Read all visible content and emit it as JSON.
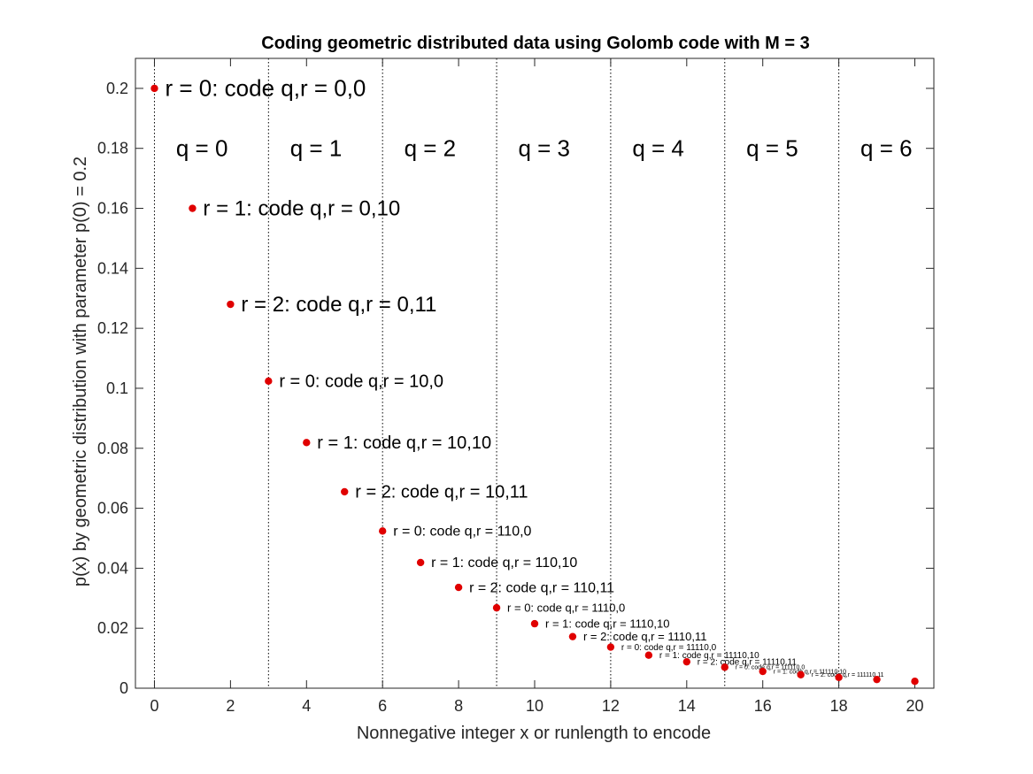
{
  "chart_data": {
    "type": "scatter",
    "title": "Coding geometric distributed data using Golomb code with M = 3",
    "xlabel": "Nonnegative integer x or runlength to encode",
    "ylabel": "p(x) by geometric distribution with parameter p(0) = 0.2",
    "xlim": [
      -0.5,
      20.5
    ],
    "ylim": [
      0,
      0.21
    ],
    "xticks": [
      0,
      2,
      4,
      6,
      8,
      10,
      12,
      14,
      16,
      18,
      20
    ],
    "yticks": [
      0,
      0.02,
      0.04,
      0.06,
      0.08,
      0.1,
      0.12,
      0.14,
      0.16,
      0.18,
      0.2
    ],
    "xtick_labels": [
      "0",
      "2",
      "4",
      "6",
      "8",
      "10",
      "12",
      "14",
      "16",
      "18",
      "20"
    ],
    "ytick_labels": [
      "0",
      "0.02",
      "0.04",
      "0.06",
      "0.08",
      "0.1",
      "0.12",
      "0.14",
      "0.16",
      "0.18",
      "0.2"
    ],
    "marker_color": "#e00000",
    "group_boundaries": [
      0,
      3,
      6,
      9,
      12,
      15,
      18
    ],
    "group_label_y": 0.18,
    "group_labels": [
      {
        "x": 1.25,
        "text": "q = 0"
      },
      {
        "x": 4.25,
        "text": "q = 1"
      },
      {
        "x": 7.25,
        "text": "q = 2"
      },
      {
        "x": 10.25,
        "text": "q = 3"
      },
      {
        "x": 13.25,
        "text": "q = 4"
      },
      {
        "x": 16.25,
        "text": "q = 5"
      },
      {
        "x": 19.25,
        "text": "q = 6"
      }
    ],
    "points": [
      {
        "x": 0,
        "y": 0.2,
        "label": "r = 0:  code q,r = 0,0",
        "font": 26
      },
      {
        "x": 1,
        "y": 0.16,
        "label": "r = 1:  code q,r = 0,10",
        "font": 24
      },
      {
        "x": 2,
        "y": 0.128,
        "label": "r = 2:  code q,r = 0,11",
        "font": 24
      },
      {
        "x": 3,
        "y": 0.1024,
        "label": "r = 0:  code q,r = 10,0",
        "font": 20
      },
      {
        "x": 4,
        "y": 0.0819,
        "label": "r = 1:  code q,r = 10,10",
        "font": 20
      },
      {
        "x": 5,
        "y": 0.0655,
        "label": "r = 2:  code q,r = 10,11",
        "font": 20
      },
      {
        "x": 6,
        "y": 0.0524,
        "label": "r = 0:  code q,r = 110,0",
        "font": 16
      },
      {
        "x": 7,
        "y": 0.0419,
        "label": "r = 1:  code q,r = 110,10",
        "font": 16
      },
      {
        "x": 8,
        "y": 0.0336,
        "label": "r = 2:  code q,r = 110,11",
        "font": 16
      },
      {
        "x": 9,
        "y": 0.0268,
        "label": "r = 0:  code q,r = 1110,0",
        "font": 13
      },
      {
        "x": 10,
        "y": 0.0215,
        "label": "r = 1:  code q,r = 1110,10",
        "font": 13
      },
      {
        "x": 11,
        "y": 0.0172,
        "label": "r = 2:  code q,r = 1110,11",
        "font": 13
      },
      {
        "x": 12,
        "y": 0.0137,
        "label": "r = 0:  code q,r = 11110,0",
        "font": 10
      },
      {
        "x": 13,
        "y": 0.011,
        "label": "r = 1:  code q,r = 11110,10",
        "font": 10
      },
      {
        "x": 14,
        "y": 0.0088,
        "label": "r = 2:  code q,r = 11110,11",
        "font": 10
      },
      {
        "x": 15,
        "y": 0.007,
        "label": "r = 0:  code q,r = 111110,0",
        "font": 7
      },
      {
        "x": 16,
        "y": 0.0056,
        "label": "r = 1:  code q,r = 111110,10",
        "font": 7
      },
      {
        "x": 17,
        "y": 0.0045,
        "label": "r = 2:  code q,r = 111110,11",
        "font": 7
      },
      {
        "x": 18,
        "y": 0.0036,
        "label": "",
        "font": 0
      },
      {
        "x": 19,
        "y": 0.0029,
        "label": "",
        "font": 0
      },
      {
        "x": 20,
        "y": 0.0023,
        "label": "",
        "font": 0
      }
    ]
  }
}
